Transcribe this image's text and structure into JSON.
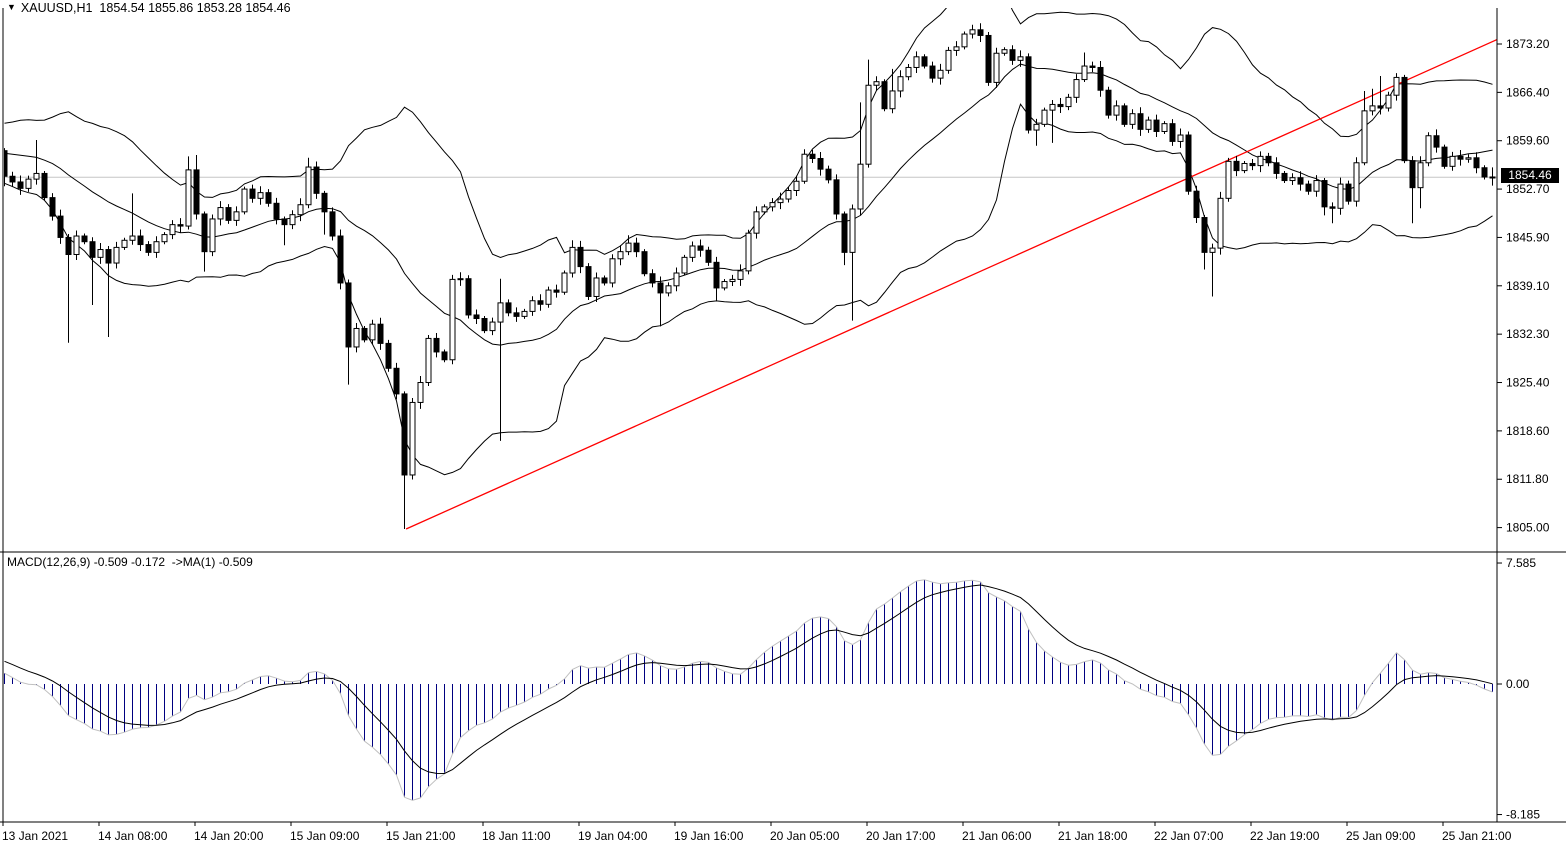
{
  "title": {
    "symbol": "XAUUSD,H1",
    "ohlc_text": "1854.54 1855.86 1853.28 1854.46",
    "open": "1854.54",
    "high": "1855.86",
    "low": "1853.28",
    "close": "1854.46"
  },
  "price_panel": {
    "price_box": "1854.46",
    "current_price": 1854.46,
    "y_axis_labels": [
      "1873.20",
      "1866.40",
      "1859.60",
      "1852.70",
      "1845.90",
      "1839.10",
      "1832.30",
      "1825.40",
      "1818.60",
      "1811.80",
      "1805.00"
    ]
  },
  "macd_panel": {
    "label": "MACD(12,26,9) -0.509 -0.172  ->MA(1) -0.509",
    "values": {
      "macd": "-0.509",
      "signal": "-0.172",
      "ma": "-0.509"
    },
    "y_axis_labels": [
      "7.585",
      "0.00",
      "-8.185"
    ]
  },
  "time_axis": {
    "labels": [
      "13 Jan 2021",
      "14 Jan 08:00",
      "14 Jan 20:00",
      "15 Jan 09:00",
      "15 Jan 21:00",
      "18 Jan 11:00",
      "19 Jan 04:00",
      "19 Jan 16:00",
      "20 Jan 05:00",
      "20 Jan 17:00",
      "21 Jan 06:00",
      "21 Jan 18:00",
      "22 Jan 07:00",
      "22 Jan 19:00",
      "25 Jan 09:00",
      "25 Jan 21:00"
    ]
  },
  "colors": {
    "bull_fill": "#ffffff",
    "bear_fill": "#000000",
    "outline": "#000000",
    "bands": "#000000",
    "trendline": "#ff0000",
    "current_line": "#c6c6c6",
    "hist": "#000080",
    "hist_envelope": "#c0c0c0",
    "signal": "#000000",
    "price_box_bg": "#000000",
    "price_box_text": "#ffffff"
  },
  "chart_data": {
    "type": "candlestick",
    "symbol": "XAUUSD",
    "timeframe": "H1",
    "title": "XAUUSD,H1 1854.54 1855.86 1853.28 1854.46",
    "price_axis": {
      "top": 1873.2,
      "step": 6.8,
      "bottom": 1805.0
    },
    "macd_axis": {
      "max": 7.585,
      "zero": 0.0,
      "min": -8.185
    },
    "indicators": {
      "bollinger_period": 20,
      "bollinger_dev": 2,
      "macd_fast": 12,
      "macd_slow": 26,
      "macd_signal": 9
    },
    "trendline": {
      "i1": 50.2,
      "p1": 1805.0,
      "i2": 187.5,
      "p2": 1874.3
    },
    "last_candle": {
      "open": 1854.54,
      "high": 1855.86,
      "low": 1853.28,
      "close": 1854.46
    },
    "first_open": 1858.2,
    "pre_closes": [
      1849.0,
      1847.5,
      1848.5,
      1850.0,
      1851.5,
      1850.5,
      1852.0,
      1853.5,
      1852.5,
      1854.0,
      1855.5,
      1856.5,
      1855.5,
      1857.0,
      1858.5,
      1859.5,
      1858.5,
      1860.0,
      1861.5,
      1862.0,
      1861.0,
      1859.5,
      1858.0,
      1857.0,
      1856.0,
      1855.5,
      1856.5,
      1857.5,
      1856.5,
      1855.5
    ],
    "closes": [
      1854.6,
      1853.8,
      1852.9,
      1854.2,
      1855.0,
      1851.6,
      1849.0,
      1846.0,
      1843.6,
      1846.2,
      1845.4,
      1843.2,
      1844.3,
      1842.4,
      1844.6,
      1845.6,
      1846.2,
      1845.0,
      1843.9,
      1845.4,
      1846.4,
      1847.8,
      1847.6,
      1855.5,
      1849.3,
      1844.0,
      1848.6,
      1850.2,
      1848.4,
      1849.6,
      1852.8,
      1851.5,
      1852.3,
      1850.8,
      1848.6,
      1847.8,
      1849.2,
      1850.6,
      1855.9,
      1852.2,
      1849.6,
      1846.2,
      1839.6,
      1830.6,
      1833.2,
      1831.6,
      1833.8,
      1831.1,
      1827.6,
      1824.0,
      1812.6,
      1822.8,
      1825.6,
      1831.8,
      1829.9,
      1828.8,
      1840.1,
      1840.2,
      1835.1,
      1834.6,
      1832.9,
      1834.1,
      1836.8,
      1835.4,
      1834.9,
      1835.6,
      1837.1,
      1836.6,
      1838.6,
      1838.3,
      1841.0,
      1844.6,
      1841.9,
      1837.7,
      1840.3,
      1839.6,
      1843.0,
      1844.0,
      1845.2,
      1844.0,
      1840.9,
      1839.6,
      1838.2,
      1839.2,
      1841.0,
      1843.2,
      1844.8,
      1844.2,
      1842.5,
      1838.9,
      1839.8,
      1840.1,
      1841.3,
      1846.6,
      1849.6,
      1850.3,
      1850.9,
      1851.4,
      1852.6,
      1853.9,
      1857.7,
      1857.1,
      1855.6,
      1854.1,
      1849.3,
      1843.9,
      1850.0,
      1856.3,
      1867.4,
      1867.9,
      1864.1,
      1866.6,
      1868.6,
      1869.9,
      1871.4,
      1870.1,
      1868.4,
      1869.5,
      1872.3,
      1872.8,
      1874.6,
      1875.2,
      1874.4,
      1867.8,
      1871.9,
      1872.4,
      1870.9,
      1871.4,
      1861.1,
      1861.9,
      1863.9,
      1864.7,
      1864.4,
      1865.7,
      1868.2,
      1870.1,
      1869.9,
      1866.7,
      1863.2,
      1864.5,
      1861.9,
      1863.4,
      1861.2,
      1862.5,
      1860.9,
      1862.0,
      1859.5,
      1860.4,
      1852.5,
      1848.8,
      1843.9,
      1844.5,
      1851.5,
      1856.7,
      1855.4,
      1856.4,
      1856.1,
      1857.4,
      1856.5,
      1855.0,
      1854.0,
      1854.4,
      1853.5,
      1852.5,
      1854.0,
      1850.3,
      1850.1,
      1853.5,
      1851.1,
      1856.5,
      1863.8,
      1864.5,
      1864.2,
      1866.0,
      1868.5,
      1856.8,
      1853.0,
      1856.5,
      1860.3,
      1858.7,
      1856.0,
      1857.4,
      1857.0,
      1857.2,
      1855.8,
      1854.5,
      1854.46
    ],
    "high_overrides": {
      "4": 1859.7,
      "16": 1852.2,
      "23": 1857.4,
      "24": 1857.6,
      "32": 1853.2,
      "38": 1857.2,
      "62": 1840.2,
      "71": 1845.6,
      "78": 1846.3,
      "100": 1858.4,
      "107": 1865.0,
      "108": 1871.0,
      "111": 1869.7,
      "119": 1873.6,
      "121": 1875.9,
      "135": 1872.0,
      "157": 1858.1,
      "170": 1866.6,
      "171": 1866.9,
      "172": 1868.7,
      "174": 1869.1,
      "179": 1861.2,
      "182": 1858.3,
      "186": 1855.86
    },
    "low_overrides": {
      "0": 1853.2,
      "8": 1831.2,
      "11": 1836.5,
      "13": 1832.0,
      "25": 1841.2,
      "35": 1844.9,
      "40": 1846.4,
      "43": 1825.3,
      "50": 1805.0,
      "62": 1817.4,
      "82": 1833.5,
      "89": 1837.0,
      "105": 1842.1,
      "106": 1834.3,
      "129": 1858.9,
      "131": 1859.3,
      "150": 1841.5,
      "151": 1837.7,
      "165": 1849.1,
      "166": 1848.0,
      "176": 1848.0,
      "177": 1850.1,
      "186": 1853.28
    }
  }
}
